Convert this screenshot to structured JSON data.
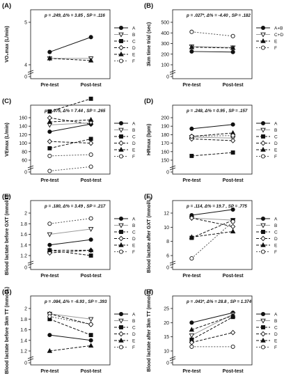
{
  "chart_data": [
    {
      "panel": "(A)",
      "type": "line",
      "stats": "p = .249, Δ% = 3.85 , SP = .116",
      "ylabel": "VO₂max (L/min)",
      "categories": [
        "Pre-test",
        "Post-test"
      ],
      "yticks": [
        0,
        4,
        5
      ],
      "ylim": [
        0,
        5
      ],
      "series": [
        {
          "name": "A",
          "values": [
            4.3,
            4.65
          ]
        },
        {
          "name": "B",
          "values": [
            4.15,
            4.15
          ]
        },
        {
          "name": "C",
          "values": [
            2.9,
            3.2
          ]
        },
        {
          "name": "D",
          "values": [
            2.75,
            2.6
          ]
        },
        {
          "name": "E",
          "values": [
            4.15,
            4.1
          ]
        },
        {
          "name": "F",
          "values": [
            1.5,
            1.6
          ]
        }
      ]
    },
    {
      "panel": "(B)",
      "type": "line",
      "stats": "p = .027*, Δ% = -4.40 , SP = .182",
      "ylabel": "3km time trial (sec)",
      "categories": [
        "Pre-test",
        "Post-test"
      ],
      "yticks": [
        0,
        100,
        200,
        300,
        400,
        500
      ],
      "ylim": [
        0,
        500
      ],
      "series": [
        {
          "name": "A+B",
          "values": [
            225,
            220
          ]
        },
        {
          "name": "C+D",
          "values": [
            272,
            262
          ]
        },
        {
          "name": "E",
          "values": [
            265,
            258
          ]
        },
        {
          "name": "F",
          "values": [
            410,
            370
          ]
        }
      ]
    },
    {
      "panel": "(C)",
      "type": "line",
      "stats": "p = .075, Δ% = 7.44 , SP = .265",
      "ylabel": "VEmax (L/min)",
      "categories": [
        "Pre-test",
        "Post-test"
      ],
      "yticks": [
        0,
        60,
        80,
        100,
        120,
        140,
        160
      ],
      "ylim": [
        0,
        160
      ],
      "series": [
        {
          "name": "A",
          "values": [
            127,
            145
          ]
        },
        {
          "name": "B",
          "values": [
            143,
            148
          ]
        },
        {
          "name": "C",
          "values": [
            88,
            110
          ]
        },
        {
          "name": "D",
          "values": [
            104,
            100
          ]
        },
        {
          "name": "E",
          "values": [
            150,
            155
          ]
        },
        {
          "name": "F",
          "values": [
            70,
            73
          ]
        }
      ]
    },
    {
      "panel": "(D)",
      "type": "line",
      "stats": "p = .248, Δ% = 0.95 , SP = .157",
      "ylabel": "HRmax (bpm)",
      "categories": [
        "Pre-test",
        "Post-test"
      ],
      "yticks": [
        0,
        150,
        160,
        170,
        180,
        190,
        200
      ],
      "ylim": [
        0,
        200
      ],
      "series": [
        {
          "name": "A",
          "values": [
            187,
            192
          ]
        },
        {
          "name": "B",
          "values": [
            177,
            176
          ]
        },
        {
          "name": "C",
          "values": [
            155,
            159
          ]
        },
        {
          "name": "D",
          "values": [
            175,
            173
          ]
        },
        {
          "name": "E",
          "values": [
            178,
            182
          ]
        },
        {
          "name": "F",
          "values": [
            178,
            179
          ]
        }
      ]
    },
    {
      "panel": "(E)",
      "type": "line",
      "stats": "p = .180, Δ% = 3.49 , SP = .217",
      "ylabel": "Blood lactate before GXT (mmol/L)",
      "categories": [
        "Pre-test",
        "Post-test"
      ],
      "yticks": [
        0,
        1.2,
        1.4,
        1.6,
        1.8,
        2.0
      ],
      "ylim": [
        0,
        2.0
      ],
      "series": [
        {
          "name": "A",
          "values": [
            1.4,
            1.5
          ]
        },
        {
          "name": "B",
          "values": [
            1.6,
            1.7
          ]
        },
        {
          "name": "C",
          "values": [
            1.3,
            1.2
          ]
        },
        {
          "name": "D",
          "values": [
            1.25,
            1.3
          ]
        },
        {
          "name": "E",
          "values": [
            1.3,
            1.3
          ]
        },
        {
          "name": "F",
          "values": [
            1.8,
            1.9
          ]
        }
      ]
    },
    {
      "panel": "(F)",
      "type": "line",
      "stats": "p = .114, Δ% = 19.7 , SP = .775",
      "ylabel": "Blood lactate after GXT (mmol/L)",
      "categories": [
        "Pre-test",
        "Post-test"
      ],
      "yticks": [
        0,
        6,
        8,
        10,
        12
      ],
      "ylim": [
        0,
        12
      ],
      "series": [
        {
          "name": "A",
          "values": [
            11.7,
            12.5
          ]
        },
        {
          "name": "B",
          "values": [
            11.3,
            11.0
          ]
        },
        {
          "name": "C",
          "values": [
            8.5,
            11.0
          ]
        },
        {
          "name": "D",
          "values": [
            11.3,
            10.1
          ]
        },
        {
          "name": "E",
          "values": [
            8.6,
            9.4
          ]
        },
        {
          "name": "F",
          "values": [
            5.6,
            10.8
          ]
        }
      ]
    },
    {
      "panel": "(G)",
      "type": "line",
      "stats": "p = .084, Δ% = -6.93 , SP = .393",
      "ylabel": "Blood lactate before 3km TT (mmol/L)",
      "categories": [
        "Pre-test",
        "Post-test"
      ],
      "yticks": [
        0,
        1.2,
        1.4,
        1.6,
        1.8,
        2.0
      ],
      "ylim": [
        0,
        2.0
      ],
      "series": [
        {
          "name": "A",
          "values": [
            1.5,
            1.4
          ]
        },
        {
          "name": "B",
          "values": [
            1.9,
            1.8
          ]
        },
        {
          "name": "C",
          "values": [
            1.8,
            1.5
          ]
        },
        {
          "name": "D",
          "values": [
            1.9,
            1.7
          ]
        },
        {
          "name": "E",
          "values": [
            1.2,
            1.3
          ]
        },
        {
          "name": "F",
          "values": [
            1.85,
            1.7
          ]
        }
      ]
    },
    {
      "panel": "(H)",
      "type": "line",
      "stats": "p = .043*, Δ% = 28.8 , SP = 1.374",
      "ylabel": "Blood lactate after 3km TT (mmol/L)",
      "categories": [
        "Pre-test",
        "Post-test"
      ],
      "yticks": [
        0,
        10,
        15,
        20,
        25
      ],
      "ylim": [
        0,
        25
      ],
      "series": [
        {
          "name": "A",
          "values": [
            20,
            23.5
          ]
        },
        {
          "name": "B",
          "values": [
            15.5,
            23
          ]
        },
        {
          "name": "C",
          "values": [
            14,
            22
          ]
        },
        {
          "name": "D",
          "values": [
            13,
            16.5
          ]
        },
        {
          "name": "E",
          "values": [
            17.5,
            22.5
          ]
        },
        {
          "name": "F",
          "values": [
            11.5,
            11.5
          ]
        }
      ]
    }
  ],
  "series_styles": {
    "A": {
      "marker": "circle",
      "fill": "#111111",
      "dash": "none",
      "line": "#111111"
    },
    "B": {
      "marker": "triangle-down",
      "fill": "#ffffff",
      "dash": "none",
      "line": "#9a9a9a"
    },
    "C": {
      "marker": "square",
      "fill": "#111111",
      "dash": "4,2",
      "line": "#111111"
    },
    "D": {
      "marker": "diamond",
      "fill": "#ffffff",
      "dash": "4,2",
      "line": "#111111"
    },
    "E": {
      "marker": "triangle-up",
      "fill": "#111111",
      "dash": "4,2",
      "line": "#111111"
    },
    "F": {
      "marker": "circle",
      "fill": "#ffffff",
      "dash": "2,2",
      "line": "#555555"
    },
    "A+B": {
      "marker": "circle",
      "fill": "#111111",
      "dash": "none",
      "line": "#111111"
    },
    "C+D": {
      "marker": "triangle-down",
      "fill": "#ffffff",
      "dash": "none",
      "line": "#9a9a9a"
    }
  }
}
